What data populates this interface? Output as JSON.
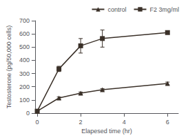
{
  "chart_data": {
    "type": "line",
    "xlabel": "Elapesed time (hr)",
    "ylabel": "Testosterone (pg/50,000 cells)",
    "x": [
      0,
      1,
      2,
      3,
      6
    ],
    "series": [
      {
        "name": "control",
        "color": "#3a3028",
        "marker": "triangle",
        "line_style": "solid",
        "values": [
          15,
          115,
          152,
          178,
          225
        ],
        "yerr": [
          5,
          8,
          8,
          8,
          10
        ]
      },
      {
        "name": "F2 3mg/ml",
        "color": "#3a3028",
        "marker": "square",
        "line_style": "solid",
        "values": [
          15,
          335,
          510,
          565,
          610
        ],
        "yerr": [
          5,
          20,
          55,
          65,
          12
        ]
      }
    ],
    "xlim": [
      -0.1,
      6.5
    ],
    "xticks": [
      0,
      2,
      4,
      6
    ],
    "ylim": [
      0,
      700
    ],
    "yticks": [
      0,
      100,
      200,
      300,
      400,
      500,
      600,
      700
    ],
    "grid": false,
    "legend": "upper right"
  }
}
